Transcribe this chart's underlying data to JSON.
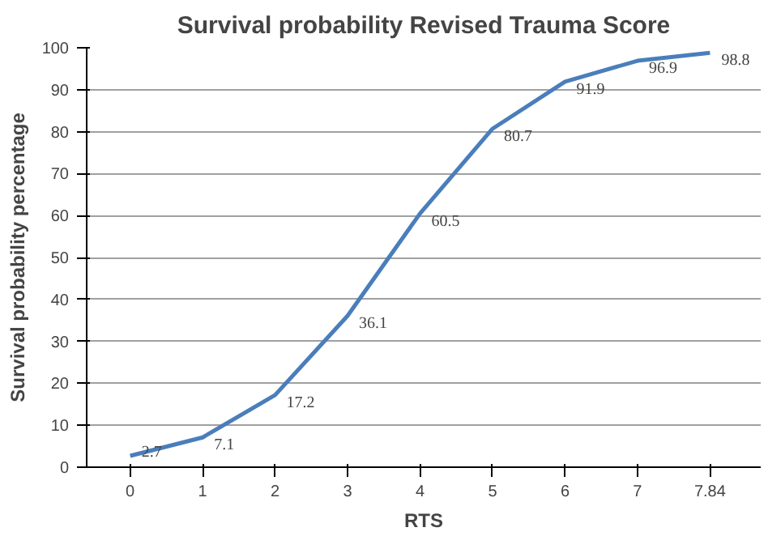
{
  "chart_data": {
    "type": "line",
    "title": "Survival probability Revised Trauma Score",
    "xlabel": "RTS",
    "ylabel": "Survival probability percentage",
    "categories": [
      "0",
      "1",
      "2",
      "3",
      "4",
      "5",
      "6",
      "7",
      "7.84"
    ],
    "series": [
      {
        "color": "#4a7ebb",
        "values": [
          2.7,
          7.1,
          17.2,
          36.1,
          60.5,
          80.7,
          91.9,
          96.9,
          98.8
        ]
      }
    ],
    "ylim": [
      0,
      100
    ],
    "yticks": [
      0,
      10,
      20,
      30,
      40,
      50,
      60,
      70,
      80,
      90,
      100
    ],
    "grid": "y",
    "data_labels": true,
    "line_style": "solid"
  }
}
